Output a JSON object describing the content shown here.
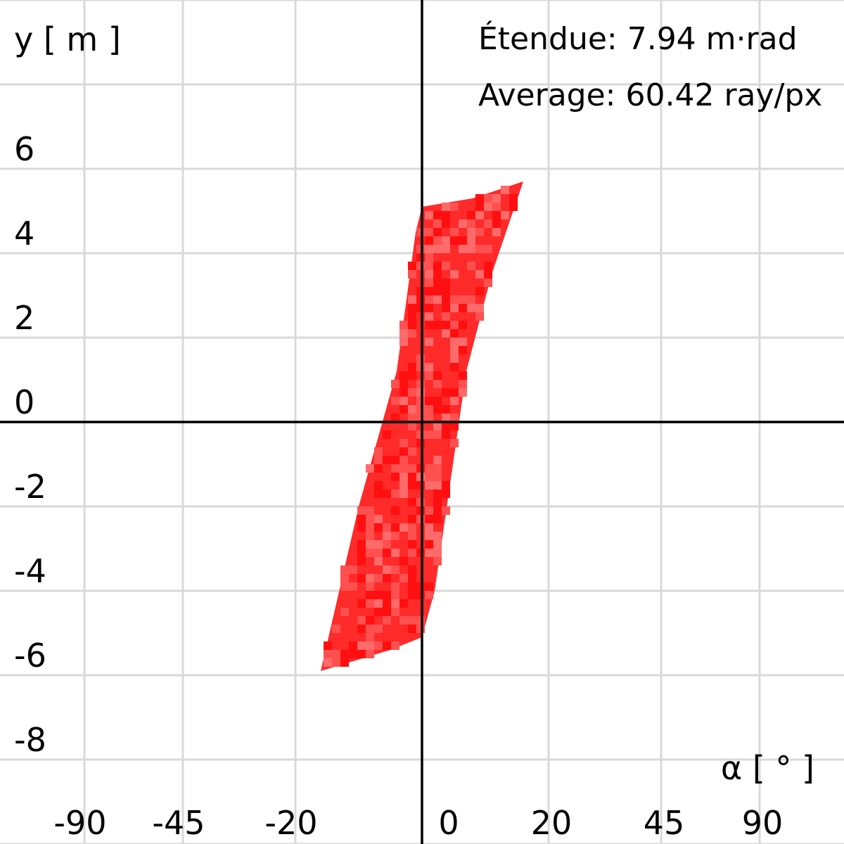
{
  "chart_data": {
    "type": "heatmap",
    "xlabel": "α [ ° ]",
    "ylabel": "y [ m ]",
    "x_ticks": [
      "-90",
      "-45",
      "-20",
      "0",
      "20",
      "45",
      "90"
    ],
    "y_ticks": [
      "6",
      "4",
      "2",
      "0",
      "-2",
      "-4",
      "-6",
      "-8"
    ],
    "annotations": {
      "etendue": "Étendue: 7.94 m·rad",
      "average": "Average: 60.42 ray/px"
    },
    "ylim": [
      -10,
      10
    ],
    "grid": true,
    "region_vertices_alpha_deg_y_m": [
      [
        0,
        5.1
      ],
      [
        8,
        5.3
      ],
      [
        16,
        5.7
      ],
      [
        11,
        3.5
      ],
      [
        7,
        1.2
      ],
      [
        2,
        -4.0
      ],
      [
        0,
        -5.1
      ],
      [
        -5,
        -5.4
      ],
      [
        -16,
        -5.9
      ],
      [
        -10,
        -2.0
      ],
      [
        -4,
        1.2
      ],
      [
        -1,
        4.5
      ]
    ],
    "fill_color": "#ff2a2a",
    "grid_color": "#d9d9d9",
    "axis_color": "#000000"
  }
}
